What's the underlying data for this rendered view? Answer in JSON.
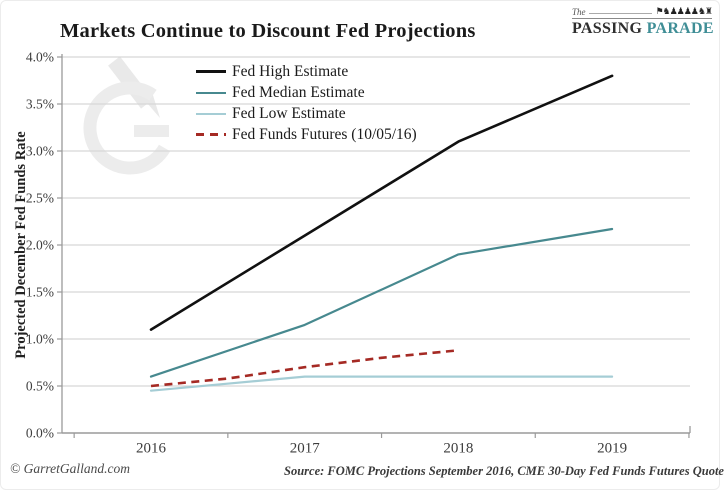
{
  "header": {
    "logo": {
      "the": "The",
      "parade_graphic_glyphs": "⚑♞♟♟♟♟♞♜",
      "passing": "PASSING",
      "parade": "PARADE"
    }
  },
  "footer": {
    "copyright": "© GarretGalland.com",
    "source": "Source: FOMC Projections September 2016,  CME 30-Day Fed Funds Futures Quote"
  },
  "chart_data": {
    "type": "line",
    "title": "Markets Continue to Discount Fed Projections",
    "ylabel": "Projected December Fed Funds Rate",
    "xlabel": "",
    "x_categories": [
      "2016",
      "2017",
      "2018",
      "2019"
    ],
    "ylim": [
      0.0,
      4.0
    ],
    "ytick_step": 0.5,
    "ytick_format": "percent_one_decimal",
    "grid": "horizontal",
    "legend_position": "top-left-inside",
    "colors": {
      "grid": "#d7d7d7",
      "axis": "#9a9a9a",
      "tick_label": "#3d3d3d",
      "watermark": "#ececec"
    },
    "series": [
      {
        "name": "Fed High Estimate",
        "color": "#111111",
        "style": "solid",
        "width": 2.6,
        "x": [
          2016,
          2017,
          2018,
          2019
        ],
        "values": [
          1.1,
          2.1,
          3.1,
          3.8
        ]
      },
      {
        "name": "Fed Median Estimate",
        "color": "#47898f",
        "style": "solid",
        "width": 2.2,
        "x": [
          2016,
          2017,
          2018,
          2019
        ],
        "values": [
          0.6,
          1.15,
          1.9,
          2.17
        ]
      },
      {
        "name": "Fed Low Estimate",
        "color": "#a5cdd5",
        "style": "solid",
        "width": 2.2,
        "x": [
          2016,
          2017,
          2018,
          2019
        ],
        "values": [
          0.45,
          0.6,
          0.6,
          0.6
        ]
      },
      {
        "name": "Fed Funds Futures (10/05/16)",
        "color": "#a52a24",
        "style": "dashed",
        "width": 2.6,
        "x": [
          2016,
          2016.5,
          2017,
          2017.5,
          2018
        ],
        "values": [
          0.5,
          0.58,
          0.7,
          0.8,
          0.88
        ]
      }
    ]
  }
}
